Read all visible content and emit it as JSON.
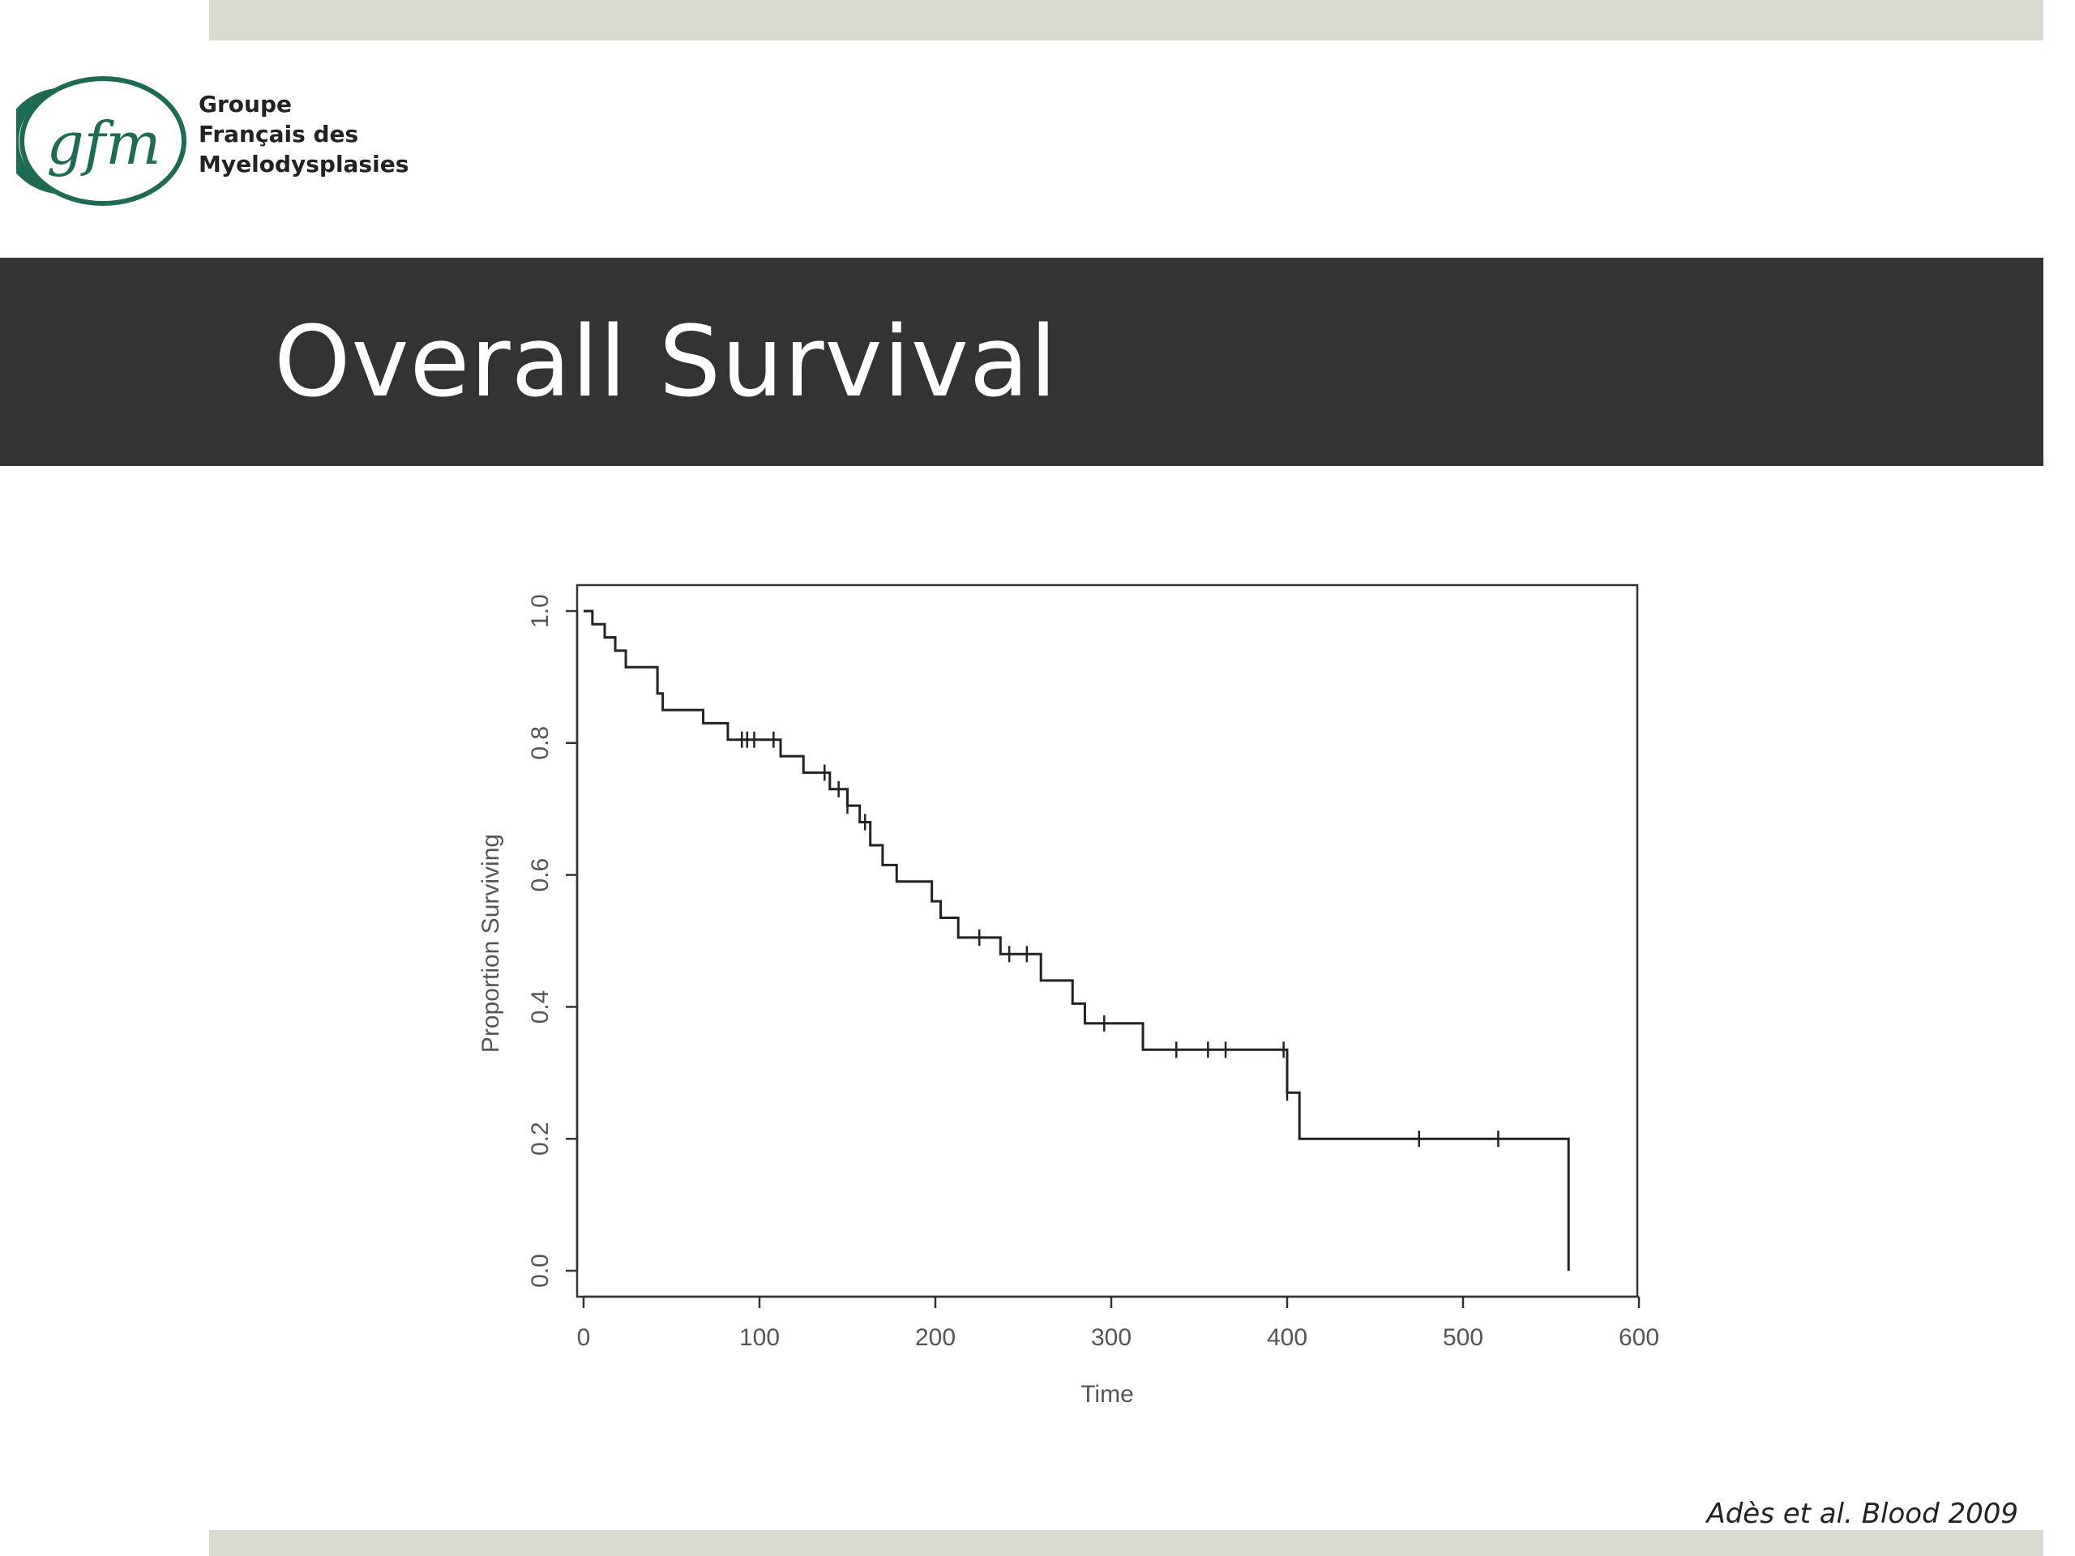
{
  "logo": {
    "mark": "gfm",
    "lines": [
      "Groupe",
      "Français des",
      "Myelodysplasies"
    ],
    "colors": {
      "ring": "#1e6b55",
      "mark": "#1e6b55"
    }
  },
  "slide": {
    "title": "Overall Survival",
    "citation": "Adès et al. Blood 2009"
  },
  "colors": {
    "band": "#333333",
    "accent_bars": "#d8dcd0",
    "curve": "#222222"
  },
  "chart_data": {
    "type": "line",
    "subtype": "kaplan-meier-step",
    "title": "",
    "xlabel": "Time",
    "ylabel": "Proportion Surviving",
    "xlim": [
      0,
      600
    ],
    "ylim": [
      0,
      1
    ],
    "xticks": [
      "0",
      "100",
      "200",
      "300",
      "400",
      "500",
      "600"
    ],
    "yticks": [
      "0.0",
      "0.2",
      "0.4",
      "0.6",
      "0.8",
      "1.0"
    ],
    "grid": false,
    "legend": "none",
    "series": [
      {
        "x": [
          0,
          5,
          12,
          18,
          24,
          42,
          45,
          68,
          82,
          112,
          125,
          140,
          150,
          157,
          163,
          170,
          178,
          198,
          203,
          213,
          237,
          260,
          278,
          285,
          318,
          400,
          407,
          560
        ],
        "y": [
          1.0,
          0.98,
          0.96,
          0.94,
          0.915,
          0.875,
          0.85,
          0.83,
          0.805,
          0.78,
          0.755,
          0.73,
          0.705,
          0.68,
          0.645,
          0.615,
          0.59,
          0.56,
          0.535,
          0.505,
          0.48,
          0.44,
          0.405,
          0.375,
          0.335,
          0.27,
          0.2,
          0.0
        ],
        "censored_x": [
          90,
          93,
          97,
          108,
          137,
          145,
          150,
          160,
          225,
          242,
          252,
          296,
          337,
          355,
          365,
          398,
          400,
          475,
          520
        ]
      }
    ]
  }
}
